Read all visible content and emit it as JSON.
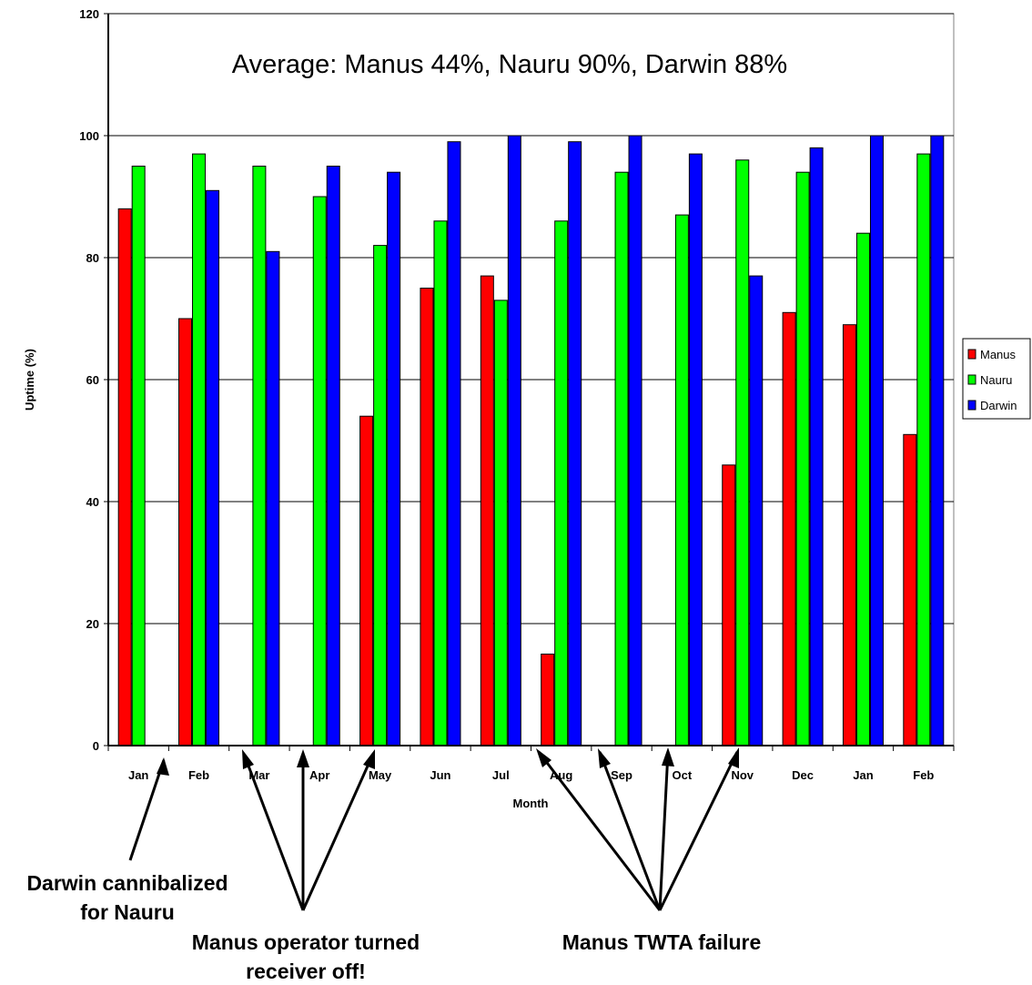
{
  "chart_data": {
    "type": "bar",
    "title": "",
    "annotation_average": "Average:  Manus 44%, Nauru 90%, Darwin 88%",
    "xlabel": "Month",
    "ylabel": "Uptime (%)",
    "ylim": [
      0,
      120
    ],
    "yticks": [
      "0",
      "20",
      "40",
      "60",
      "80",
      "100",
      "120"
    ],
    "grid": true,
    "legend_position": "right",
    "categories": [
      "Jan",
      "Feb",
      "Mar",
      "Apr",
      "May",
      "Jun",
      "Jul",
      "Aug",
      "Sep",
      "Oct",
      "Nov",
      "Dec",
      "Jan",
      "Feb"
    ],
    "series": [
      {
        "name": "Manus",
        "color": "#ff0000",
        "values": [
          88,
          70,
          0,
          0,
          54,
          75,
          77,
          15,
          0,
          0,
          46,
          71,
          69,
          51
        ]
      },
      {
        "name": "Nauru",
        "color": "#00ff00",
        "values": [
          95,
          97,
          95,
          90,
          82,
          86,
          73,
          86,
          94,
          87,
          96,
          94,
          84,
          97
        ]
      },
      {
        "name": "Darwin",
        "color": "#0000ff",
        "values": [
          0,
          91,
          81,
          95,
          94,
          99,
          100,
          99,
          100,
          97,
          77,
          98,
          100,
          100
        ]
      }
    ],
    "annotations": [
      {
        "lines": [
          "Darwin cannibalized",
          "for Nauru"
        ]
      },
      {
        "lines": [
          "Manus operator turned",
          "receiver off!"
        ]
      },
      {
        "lines": [
          "Manus TWTA failure"
        ]
      }
    ]
  }
}
